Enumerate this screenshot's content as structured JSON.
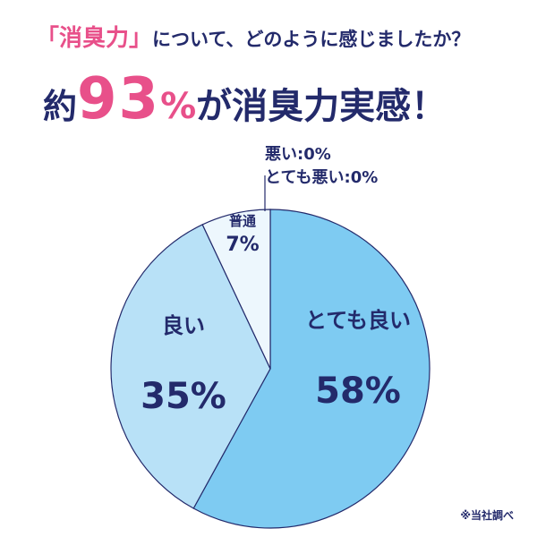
{
  "header": {
    "question_bracket_open": "「",
    "question_keyword": "消臭力",
    "question_bracket_close": "」",
    "question_rest": "について、どのように感じましたか？",
    "headline_prefix": "約",
    "headline_number": "93",
    "headline_percent": "%",
    "headline_suffix": "が消臭力実感！"
  },
  "chart_data": {
    "type": "pie",
    "slices": [
      {
        "label": "とても良い",
        "value": 58,
        "display": "58%",
        "color": "#7ecbf2"
      },
      {
        "label": "良い",
        "value": 35,
        "display": "35%",
        "color": "#b8e1f7"
      },
      {
        "label": "普通",
        "value": 7,
        "display": "7%",
        "color": "#edf7fd"
      },
      {
        "label": "悪い",
        "value": 0,
        "display": "0%"
      },
      {
        "label": "とても悪い",
        "value": 0,
        "display": "0%"
      }
    ],
    "zero_labels": [
      "悪い:0%",
      "とても悪い:0%"
    ],
    "border_color": "#232a6b"
  },
  "footnote": "※当社調べ"
}
